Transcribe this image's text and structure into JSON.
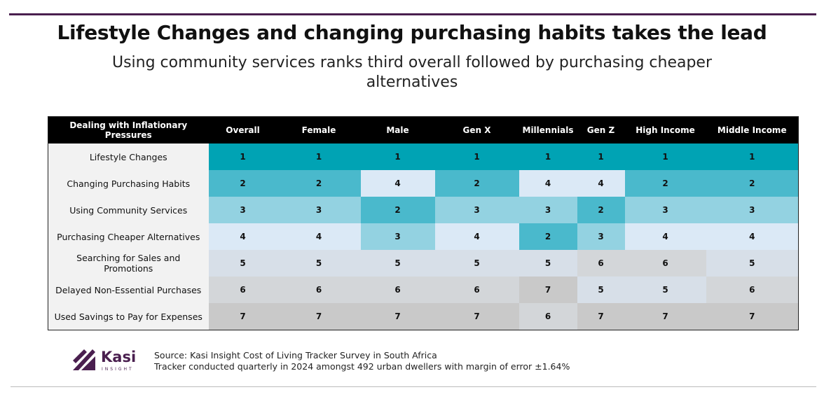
{
  "header": {
    "title": "Lifestyle Changes and changing purchasing habits takes the lead",
    "subtitle": "Using community services ranks third overall followed by purchasing cheaper alternatives"
  },
  "table": {
    "columns": [
      "Dealing with Inflationary Pressures",
      "Overall",
      "Female",
      "Male",
      "Gen X",
      "Millennials",
      "Gen Z",
      "High Income",
      "Middle Income"
    ],
    "rows": [
      [
        "Lifestyle Changes",
        1,
        1,
        1,
        1,
        1,
        1,
        1,
        1
      ],
      [
        "Changing Purchasing Habits",
        2,
        2,
        4,
        2,
        4,
        4,
        2,
        2
      ],
      [
        "Using Community Services",
        3,
        3,
        2,
        3,
        3,
        2,
        3,
        3
      ],
      [
        "Purchasing Cheaper Alternatives",
        4,
        4,
        3,
        4,
        2,
        3,
        4,
        4
      ],
      [
        "Searching for Sales and Promotions",
        5,
        5,
        5,
        5,
        5,
        6,
        6,
        5
      ],
      [
        "Delayed Non-Essential Purchases",
        6,
        6,
        6,
        6,
        7,
        5,
        5,
        6
      ],
      [
        "Used Savings to Pay for Expenses",
        7,
        7,
        7,
        7,
        6,
        7,
        7,
        7
      ]
    ],
    "rank_colors": {
      "1": "#00a3b4",
      "2": "#4ab9cc",
      "3": "#93d2e1",
      "4": "#dbe9f6",
      "5": "#d7dfe8",
      "6": "#d3d6d9",
      "7": "#c9c9c9"
    }
  },
  "footer": {
    "logo": "Kasi",
    "logo_sub": "INSIGHT",
    "source": "Source: Kasi Insight Cost of Living Tracker Survey in South Africa",
    "note": "Tracker conducted quarterly in 2024 amongst 492 urban dwellers with margin of error ±1.64%"
  }
}
